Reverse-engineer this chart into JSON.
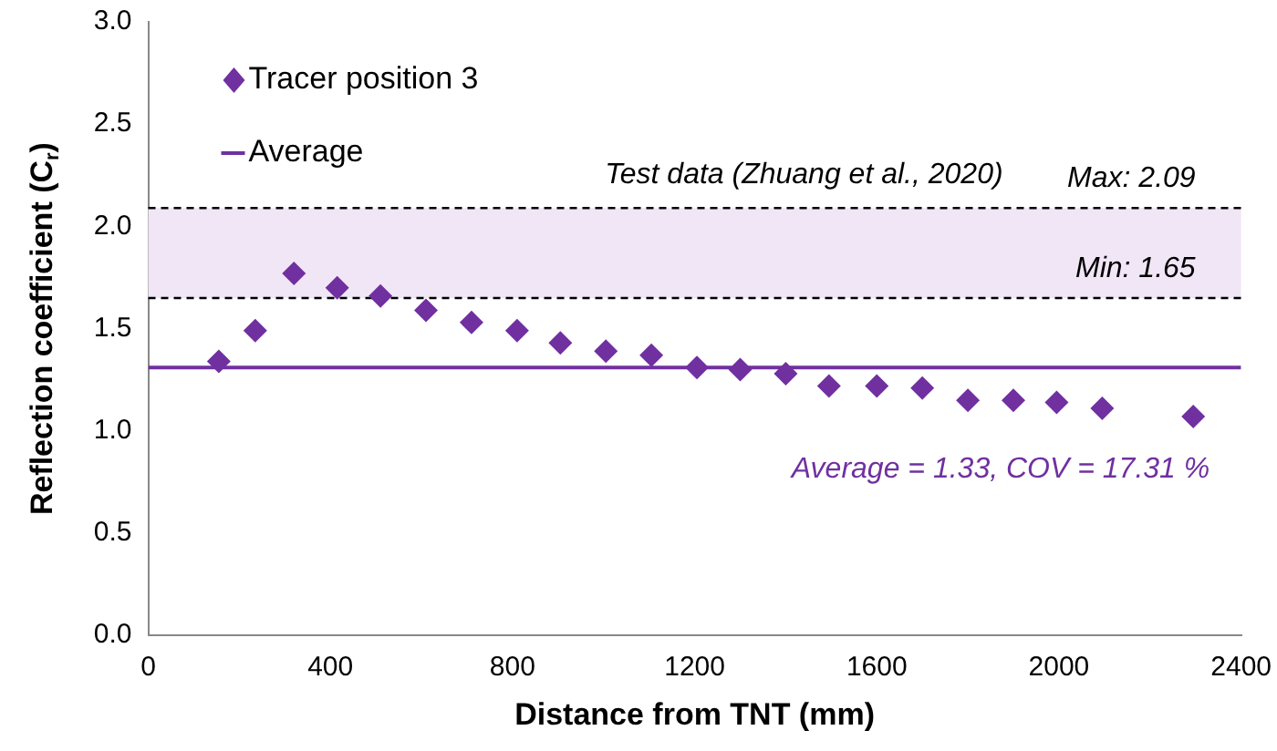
{
  "chart_data": {
    "type": "scatter",
    "xlabel": "Distance from TNT (mm)",
    "ylabel": "Reflection coefficient (C$_{r}$)",
    "xlim": [
      0,
      2400
    ],
    "xticks": [
      0,
      400,
      800,
      1200,
      1600,
      2000,
      2400
    ],
    "ylim": [
      0,
      3
    ],
    "yticks": [
      {
        "value": 0,
        "label": "0.0"
      },
      {
        "value": 0.5,
        "label": "0.5"
      },
      {
        "value": 1,
        "label": "1.0"
      },
      {
        "value": 1.5,
        "label": "1.5"
      },
      {
        "value": 2,
        "label": "2.0"
      },
      {
        "value": 2.5,
        "label": "2.5"
      },
      {
        "value": 3,
        "label": "3.0"
      }
    ],
    "series": [
      {
        "name": "Tracer position 3",
        "marker": "diamond",
        "color": "#7030a0",
        "x": [
          155,
          235,
          320,
          415,
          510,
          610,
          710,
          810,
          905,
          1005,
          1105,
          1205,
          1300,
          1400,
          1495,
          1600,
          1700,
          1800,
          1900,
          1995,
          2095,
          2295
        ],
        "values": [
          1.34,
          1.49,
          1.77,
          1.7,
          1.66,
          1.59,
          1.53,
          1.49,
          1.43,
          1.39,
          1.37,
          1.31,
          1.3,
          1.28,
          1.22,
          1.22,
          1.21,
          1.15,
          1.15,
          1.14,
          1.11,
          1.07
        ]
      },
      {
        "name": "Average",
        "type": "line",
        "marker": "none",
        "color": "#7030a0",
        "x": [
          0,
          2400
        ],
        "values": [
          1.31,
          1.31
        ]
      }
    ],
    "bands": [
      {
        "axis": "y",
        "from": 1.65,
        "to": 2.09,
        "color": "#f1e6f6"
      }
    ],
    "ref_lines": [
      {
        "axis": "y",
        "value": 2.09,
        "label": "Max: 2.09",
        "color": "#000000",
        "line_style": "dashed"
      },
      {
        "axis": "y",
        "value": 1.65,
        "label": "Min: 1.65",
        "color": "#000000",
        "line_style": "dashed"
      }
    ],
    "annotations": [
      "Test data (Zhuang et al., 2020)",
      "Average = 1.33, COV = 17.31 %"
    ],
    "legend": "top left",
    "grid": false
  }
}
